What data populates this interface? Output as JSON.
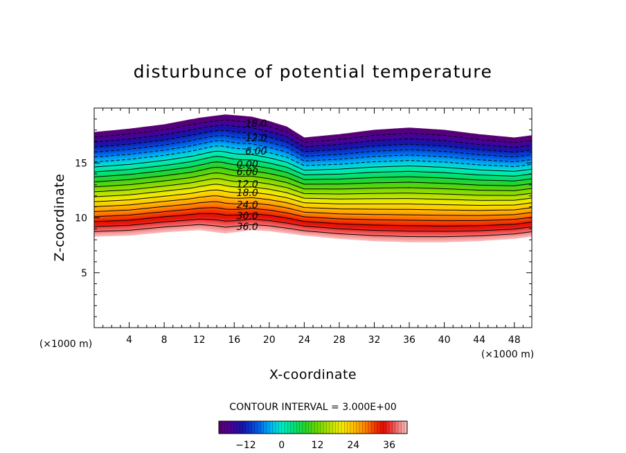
{
  "chart_data": {
    "type": "contour",
    "title": "disturbunce of potential temperature",
    "xlabel": "X-coordinate",
    "ylabel": "Z-coordinate",
    "x_unit": "(×1000 m)",
    "z_unit": "(×1000 m)",
    "xlim": [
      0,
      50
    ],
    "ylim": [
      0,
      20
    ],
    "x_ticks": [
      4,
      8,
      12,
      16,
      20,
      24,
      28,
      32,
      36,
      40,
      44,
      48
    ],
    "y_ticks": [
      5,
      10,
      15
    ],
    "contour_interval_text": "CONTOUR INTERVAL = 3.000E+00",
    "contour_interval": 3.0,
    "contour_labels": [
      {
        "text": "18.0",
        "value": 18.0,
        "x": 18.5,
        "z": 18.6
      },
      {
        "text": "12.0",
        "value": 12.0,
        "x": 18.5,
        "z": 17.3
      },
      {
        "text": "6.00",
        "value": 6.0,
        "x": 18.5,
        "z": 16.1
      },
      {
        "text": "0.00",
        "value": 0.0,
        "x": 17.5,
        "z": 14.9
      },
      {
        "text": "6.00",
        "value": 6.0,
        "x": 17.5,
        "z": 14.2
      },
      {
        "text": "12.0",
        "value": 12.0,
        "x": 17.5,
        "z": 13.1
      },
      {
        "text": "18.0",
        "value": 18.0,
        "x": 17.5,
        "z": 12.3
      },
      {
        "text": "24.0",
        "value": 24.0,
        "x": 17.5,
        "z": 11.2
      },
      {
        "text": "30.0",
        "value": 30.0,
        "x": 17.5,
        "z": 10.2
      },
      {
        "text": "36.0",
        "value": 36.0,
        "x": 17.5,
        "z": 9.2
      }
    ],
    "colorbar": {
      "min": -21,
      "max": 42,
      "ticks": [
        -12,
        0,
        12,
        24,
        36
      ],
      "tick_labels": [
        "−12",
        "0",
        "12",
        "24",
        "36"
      ]
    },
    "field_boundaries": {
      "x": [
        0,
        4,
        8,
        12,
        15,
        18,
        20,
        22,
        24,
        28,
        32,
        36,
        40,
        44,
        48,
        50
      ],
      "top_z": [
        17.8,
        18.1,
        18.5,
        19.1,
        19.4,
        19.2,
        18.8,
        18.3,
        17.3,
        17.6,
        18.0,
        18.2,
        18.0,
        17.6,
        17.3,
        17.5
      ],
      "bottom_z": [
        8.3,
        8.4,
        8.7,
        8.9,
        8.6,
        8.9,
        8.8,
        8.6,
        8.4,
        8.1,
        7.9,
        7.8,
        7.8,
        7.9,
        8.1,
        8.3
      ]
    }
  }
}
